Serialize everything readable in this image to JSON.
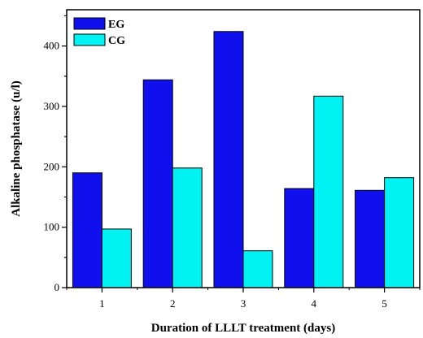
{
  "chart_data": {
    "type": "bar",
    "title": "",
    "xlabel": "Duration of LLLT treatment (days)",
    "ylabel": "Alkaline phosphatase (u/l)",
    "categories": [
      "1",
      "2",
      "3",
      "4",
      "5"
    ],
    "series": [
      {
        "name": "EG",
        "values": [
          190,
          344,
          424,
          164,
          161
        ],
        "color": "#1010ee"
      },
      {
        "name": "CG",
        "values": [
          97,
          198,
          61,
          317,
          182
        ],
        "color": "#00f2f2"
      }
    ],
    "ylim": [
      0,
      460
    ],
    "yticks": [
      0,
      100,
      200,
      300,
      400
    ],
    "grid": false,
    "legend_position": "top-left"
  }
}
